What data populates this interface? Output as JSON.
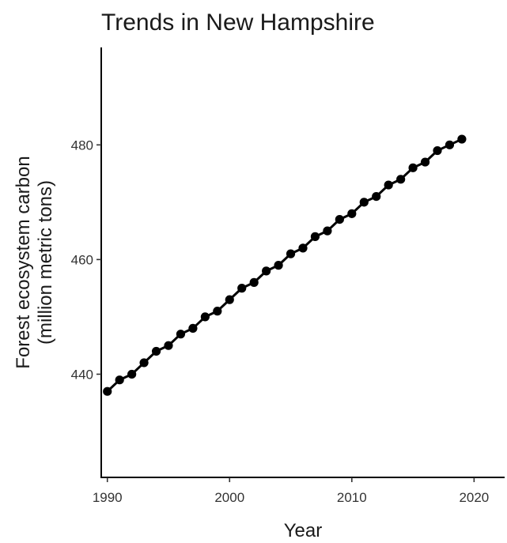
{
  "chart_data": {
    "type": "line",
    "title": "Trends in New Hampshire",
    "xlabel": "Year",
    "ylabel": [
      "Forest ecosystem carbon",
      "(million metric tons)"
    ],
    "x": [
      1990,
      1991,
      1992,
      1993,
      1994,
      1995,
      1996,
      1997,
      1998,
      1999,
      2000,
      2001,
      2002,
      2003,
      2004,
      2005,
      2006,
      2007,
      2008,
      2009,
      2010,
      2011,
      2012,
      2013,
      2014,
      2015,
      2016,
      2017,
      2018,
      2019
    ],
    "series": [
      {
        "values": [
          437,
          439,
          440,
          442,
          444,
          445,
          447,
          448,
          450,
          451,
          453,
          455,
          456,
          458,
          459,
          461,
          462,
          464,
          465,
          467,
          468,
          470,
          471,
          473,
          474,
          476,
          477,
          479,
          480,
          481
        ]
      }
    ],
    "xlim": [
      1989.5,
      2022.5
    ],
    "ylim": [
      422,
      497
    ],
    "xticks": [
      1990,
      2000,
      2010,
      2020
    ],
    "yticks": [
      440,
      460,
      480
    ],
    "grid": false,
    "line_color": "#000000",
    "point_color": "#000000"
  }
}
